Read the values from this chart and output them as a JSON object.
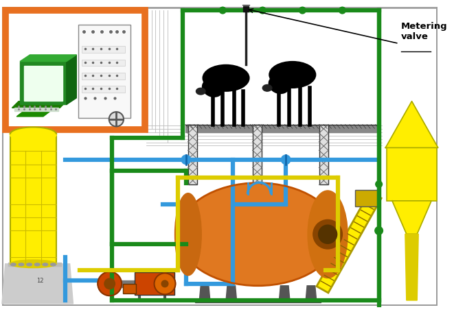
{
  "bg_color": "#ffffff",
  "green_pipe": "#1a8a1a",
  "blue_pipe": "#3399dd",
  "yellow_pipe": "#ddcc00",
  "yellow_fill": "#ffee00",
  "orange_body": "#e07820",
  "orange_dark": "#c05000",
  "yellow_tank": "#ffee00",
  "orange_border": "#e87020",
  "ctrl_border": "#e87020",
  "ctrl_bg": "#ffffff",
  "gray_wire": "#bbbbbb",
  "dark_gray": "#555555",
  "annotation_text": "Metering\nvalve",
  "lw_pipe": 4.5,
  "lw_thin": 2.0
}
